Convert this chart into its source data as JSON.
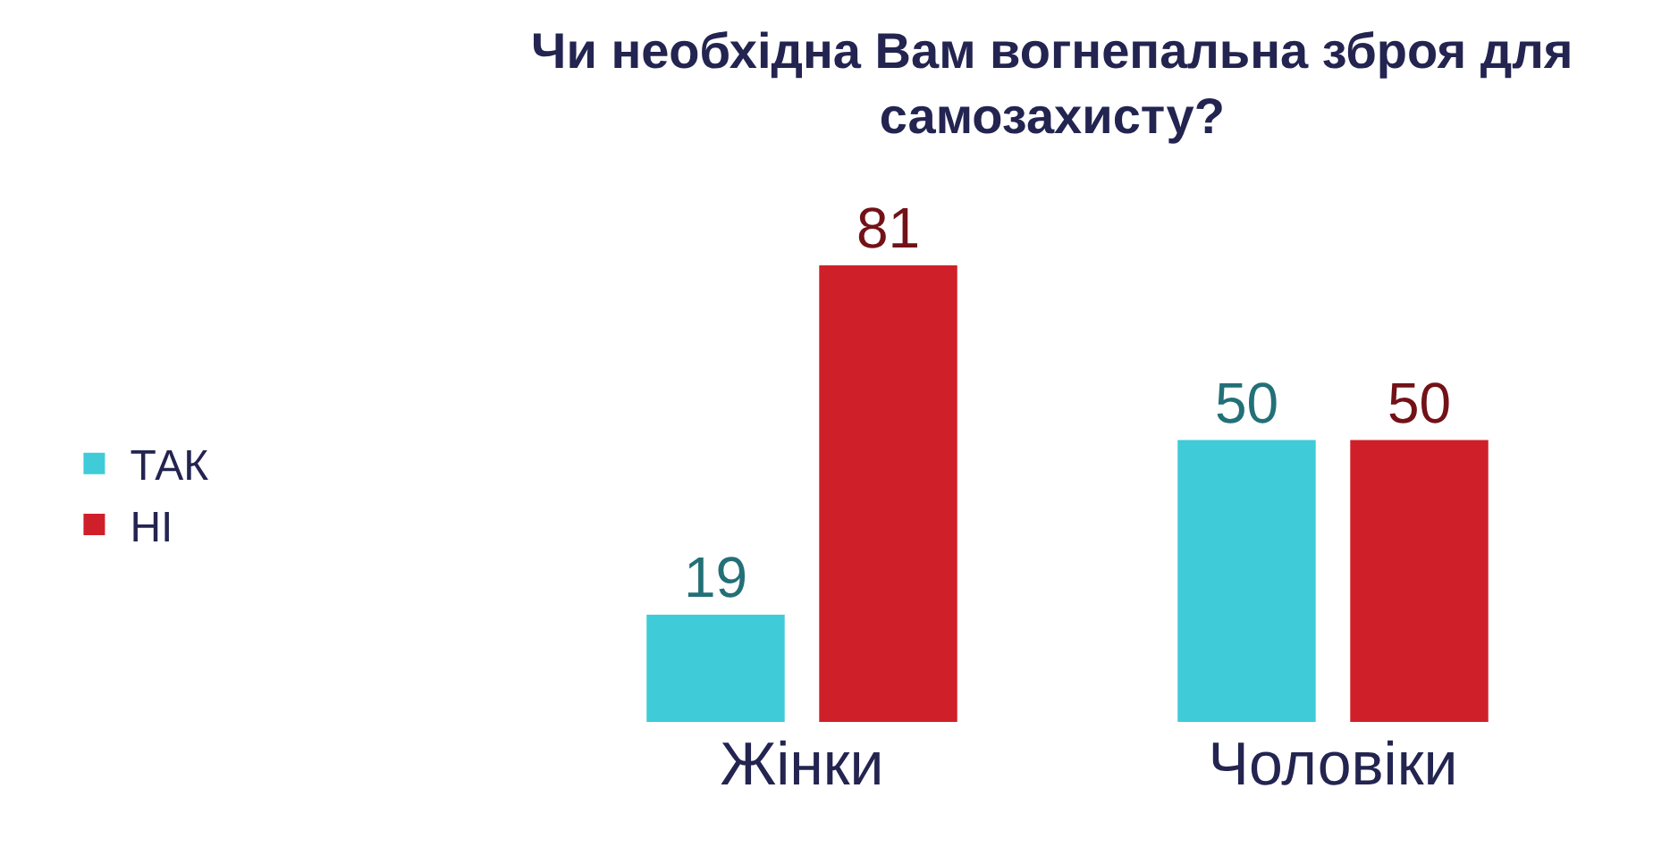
{
  "chart_data": {
    "type": "bar",
    "title": "Чи необхідна Вам вогнепальна зброя для самозахисту?",
    "categories": [
      "Жінки",
      "Чоловіки"
    ],
    "series": [
      {
        "name": "ТАК",
        "color": "#3fcbd8",
        "values": [
          19,
          50
        ]
      },
      {
        "name": "НІ",
        "color": "#cf2029",
        "values": [
          81,
          50
        ]
      }
    ],
    "data_labels": true,
    "legend": "left"
  }
}
